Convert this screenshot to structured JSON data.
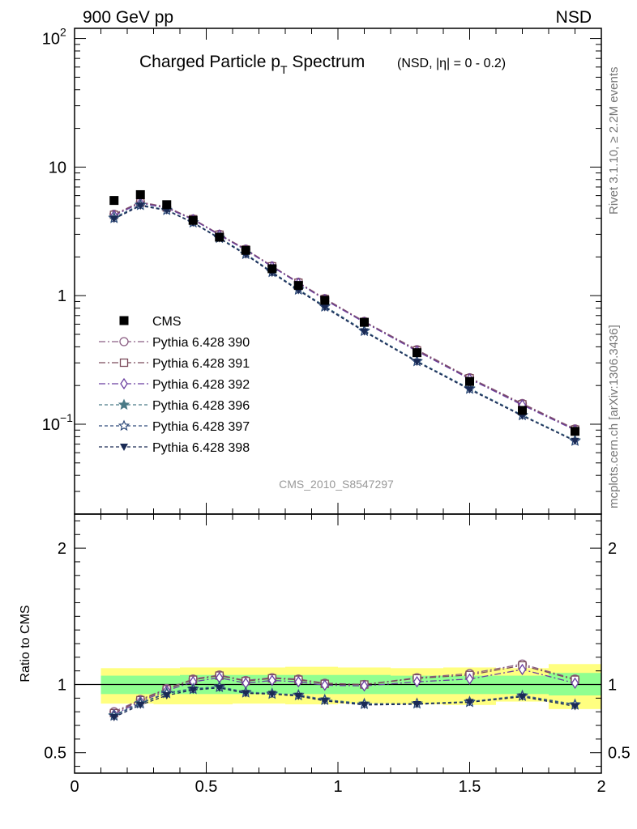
{
  "header": {
    "left": "900 GeV pp",
    "right": "NSD"
  },
  "side_labels": {
    "top": "Rivet 3.1.10, ≥ 2.2M events",
    "bottom": "mcplots.cern.ch [arXiv:1306.3436]"
  },
  "watermark": "CMS_2010_S8547297",
  "chart_data": [
    {
      "type": "scatter",
      "panel": "main",
      "title": "Charged Particle p",
      "title_sub": "T",
      "title_rest": " Spectrum",
      "title_note": "(NSD, |η| =   0 - 0.2)",
      "xlim": [
        0,
        2
      ],
      "ylim": [
        0.02,
        120
      ],
      "yscale": "log",
      "y_ticks": [
        {
          "v": 0.1,
          "label": "10",
          "sup": "−1"
        },
        {
          "v": 1,
          "label": "1",
          "sup": ""
        },
        {
          "v": 10,
          "label": "10",
          "sup": ""
        },
        {
          "v": 100,
          "label": "10",
          "sup": "2"
        }
      ],
      "legend_position": "middle-left",
      "x": [
        0.15,
        0.25,
        0.35,
        0.45,
        0.55,
        0.65,
        0.75,
        0.85,
        0.95,
        1.1,
        1.3,
        1.5,
        1.7,
        1.9
      ],
      "series": [
        {
          "name": "CMS",
          "color": "#000000",
          "marker": "square",
          "line": "none",
          "values": [
            5.5,
            6.1,
            5.1,
            3.85,
            2.85,
            2.25,
            1.62,
            1.2,
            0.92,
            0.62,
            0.36,
            0.215,
            0.128,
            0.088
          ]
        },
        {
          "name": "Pythia 6.428 390",
          "color": "#8b5e83",
          "marker": "circle-open",
          "line": "dashdot",
          "values": [
            4.3,
            5.35,
            4.9,
            3.95,
            3.0,
            2.3,
            1.7,
            1.27,
            0.95,
            0.63,
            0.38,
            0.23,
            0.145,
            0.092
          ]
        },
        {
          "name": "Pythia 6.428 391",
          "color": "#7a4a5a",
          "marker": "square-open",
          "line": "dashdot",
          "values": [
            4.25,
            5.3,
            4.85,
            3.93,
            2.98,
            2.28,
            1.69,
            1.26,
            0.94,
            0.625,
            0.375,
            0.228,
            0.143,
            0.091
          ]
        },
        {
          "name": "Pythia 6.428 392",
          "color": "#6b3fa0",
          "marker": "diamond-open",
          "line": "dashdot",
          "values": [
            4.2,
            5.25,
            4.8,
            3.9,
            2.96,
            2.26,
            1.68,
            1.25,
            0.93,
            0.62,
            0.37,
            0.225,
            0.141,
            0.09
          ]
        },
        {
          "name": "Pythia 6.428 396",
          "color": "#4a7a86",
          "marker": "star-filled",
          "line": "dashed",
          "values": [
            4.05,
            5.1,
            4.65,
            3.72,
            2.82,
            2.12,
            1.53,
            1.12,
            0.83,
            0.535,
            0.31,
            0.19,
            0.118,
            0.075
          ]
        },
        {
          "name": "Pythia 6.428 397",
          "color": "#2e4a7a",
          "marker": "star-open",
          "line": "dashed",
          "values": [
            4.0,
            5.05,
            4.62,
            3.7,
            2.8,
            2.1,
            1.52,
            1.11,
            0.82,
            0.53,
            0.308,
            0.188,
            0.117,
            0.074
          ]
        },
        {
          "name": "Pythia 6.428 398",
          "color": "#1a2a55",
          "marker": "triangle-down",
          "line": "dashed",
          "values": [
            3.95,
            5.0,
            4.6,
            3.68,
            2.78,
            2.08,
            1.5,
            1.1,
            0.81,
            0.525,
            0.305,
            0.186,
            0.116,
            0.074
          ]
        }
      ]
    },
    {
      "type": "scatter",
      "panel": "ratio",
      "ylabel": "Ratio to CMS",
      "xlim": [
        0,
        2
      ],
      "ylim": [
        0.35,
        2.25
      ],
      "x_ticks": [
        0,
        0.5,
        1,
        1.5,
        2
      ],
      "x_tick_labels": [
        "0",
        "0.5",
        "1",
        "1.5",
        "2"
      ],
      "y_ticks": [
        0.5,
        1,
        2
      ],
      "y_tick_labels": [
        "0.5",
        "1",
        "2"
      ],
      "reference_line": 1,
      "bands": {
        "bins": [
          [
            0.1,
            0.2
          ],
          [
            0.2,
            0.3
          ],
          [
            0.3,
            0.4
          ],
          [
            0.4,
            0.5
          ],
          [
            0.5,
            0.6
          ],
          [
            0.6,
            0.7
          ],
          [
            0.7,
            0.8
          ],
          [
            0.8,
            0.9
          ],
          [
            0.9,
            1.0
          ],
          [
            1.0,
            1.2
          ],
          [
            1.2,
            1.4
          ],
          [
            1.4,
            1.6
          ],
          [
            1.6,
            1.8
          ],
          [
            1.8,
            2.0
          ]
        ],
        "outer": [
          [
            0.86,
            1.12
          ],
          [
            0.86,
            1.12
          ],
          [
            0.855,
            1.12
          ],
          [
            0.855,
            1.125
          ],
          [
            0.855,
            1.125
          ],
          [
            0.86,
            1.125
          ],
          [
            0.86,
            1.125
          ],
          [
            0.855,
            1.13
          ],
          [
            0.855,
            1.13
          ],
          [
            0.86,
            1.125
          ],
          [
            0.855,
            1.12
          ],
          [
            0.85,
            1.125
          ],
          [
            0.875,
            1.12
          ],
          [
            0.82,
            1.15
          ]
        ],
        "inner": [
          [
            0.93,
            1.065
          ],
          [
            0.93,
            1.065
          ],
          [
            0.93,
            1.065
          ],
          [
            0.93,
            1.07
          ],
          [
            0.93,
            1.07
          ],
          [
            0.93,
            1.07
          ],
          [
            0.93,
            1.07
          ],
          [
            0.93,
            1.07
          ],
          [
            0.93,
            1.07
          ],
          [
            0.93,
            1.07
          ],
          [
            0.93,
            1.065
          ],
          [
            0.93,
            1.065
          ],
          [
            0.93,
            1.065
          ],
          [
            0.92,
            1.085
          ]
        ],
        "outer_color": "#ffff80",
        "inner_color": "#90ff90"
      },
      "series": [
        {
          "name": "Pythia 6.428 390",
          "values": [
            0.8,
            0.89,
            0.97,
            1.04,
            1.07,
            1.03,
            1.05,
            1.04,
            1.01,
            1.0,
            1.05,
            1.08,
            1.15,
            1.04
          ]
        },
        {
          "name": "Pythia 6.428 391",
          "values": [
            0.79,
            0.885,
            0.965,
            1.035,
            1.065,
            1.025,
            1.045,
            1.035,
            1.005,
            1.0,
            1.045,
            1.07,
            1.14,
            1.035
          ]
        },
        {
          "name": "Pythia 6.428 392",
          "values": [
            0.78,
            0.875,
            0.955,
            1.02,
            1.05,
            1.01,
            1.03,
            1.02,
            0.995,
            0.99,
            1.02,
            1.04,
            1.11,
            1.01
          ]
        },
        {
          "name": "Pythia 6.428 396",
          "values": [
            0.775,
            0.865,
            0.94,
            0.97,
            0.985,
            0.945,
            0.935,
            0.925,
            0.89,
            0.86,
            0.86,
            0.875,
            0.92,
            0.855
          ]
        },
        {
          "name": "Pythia 6.428 397",
          "values": [
            0.77,
            0.86,
            0.935,
            0.965,
            0.98,
            0.94,
            0.93,
            0.92,
            0.885,
            0.855,
            0.86,
            0.87,
            0.915,
            0.85
          ]
        },
        {
          "name": "Pythia 6.428 398",
          "values": [
            0.76,
            0.85,
            0.92,
            0.96,
            0.975,
            0.935,
            0.93,
            0.915,
            0.88,
            0.85,
            0.855,
            0.87,
            0.91,
            0.84
          ]
        }
      ]
    }
  ]
}
